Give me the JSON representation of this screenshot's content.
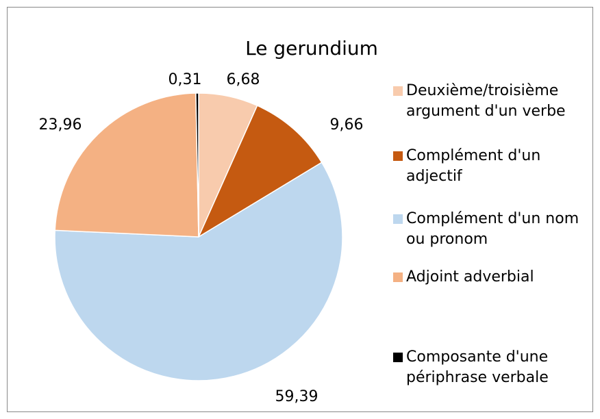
{
  "chart_data": {
    "type": "pie",
    "title": "Le gerundium",
    "categories": [
      "Deuxième/troisième argument d'un verbe",
      "Complément d'un adjectif",
      "Complément d'un nom ou pronom",
      "Adjoint adverbial",
      "Composante d'une périphrase verbale"
    ],
    "values": [
      6.68,
      9.66,
      59.39,
      23.96,
      0.31
    ],
    "value_labels": [
      "6,68",
      "9,66",
      "59,39",
      "23,96",
      "0,31"
    ],
    "colors": [
      "#f8cbad",
      "#c55a11",
      "#bdd7ee",
      "#f4b183",
      "#000000"
    ],
    "legend": "right"
  }
}
